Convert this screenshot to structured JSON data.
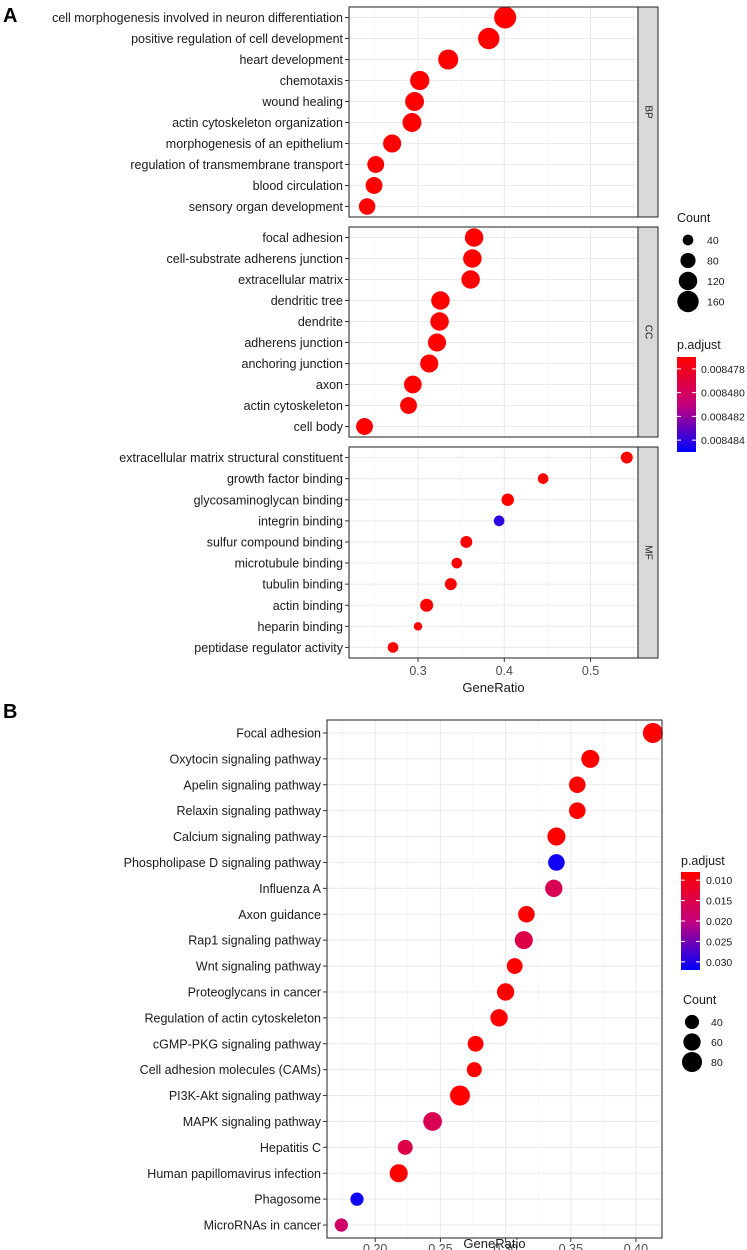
{
  "chart_data": [
    {
      "panel": "A",
      "type": "scatter",
      "xlabel": "GeneRatio",
      "xticks": [
        0.3,
        0.4,
        0.5
      ],
      "xlim": [
        0.22,
        0.555
      ],
      "facets": [
        {
          "name": "BP",
          "categories": [
            "cell morphogenesis involved in neuron differentiation",
            "positive regulation of cell development",
            "heart development",
            "chemotaxis",
            "wound healing",
            "actin cytoskeleton organization",
            "morphogenesis of an epithelium",
            "regulation of transmembrane transport",
            "blood circulation",
            "sensory organ development"
          ],
          "gene_ratio": [
            0.401,
            0.382,
            0.335,
            0.302,
            0.296,
            0.293,
            0.27,
            0.251,
            0.249,
            0.241
          ],
          "count": [
            170,
            160,
            140,
            130,
            125,
            125,
            115,
            100,
            100,
            95
          ],
          "p_adjust": [
            0.008477,
            0.008477,
            0.008477,
            0.008477,
            0.008477,
            0.008477,
            0.008477,
            0.008477,
            0.008477,
            0.008477
          ]
        },
        {
          "name": "CC",
          "categories": [
            "focal adhesion",
            "cell-substrate adherens junction",
            "extracellular matrix",
            "dendritic tree",
            "dendrite",
            "adherens junction",
            "anchoring junction",
            "axon",
            "actin cytoskeleton",
            "cell body"
          ],
          "gene_ratio": [
            0.365,
            0.363,
            0.361,
            0.326,
            0.325,
            0.322,
            0.313,
            0.294,
            0.289,
            0.238
          ],
          "count": [
            120,
            120,
            120,
            120,
            120,
            115,
            115,
            110,
            100,
            100
          ],
          "p_adjust": [
            0.008477,
            0.008477,
            0.008477,
            0.008477,
            0.008477,
            0.008477,
            0.008477,
            0.008477,
            0.008477,
            0.008477
          ]
        },
        {
          "name": "MF",
          "categories": [
            "extracellular matrix structural constituent",
            "growth factor binding",
            "glycosaminoglycan binding",
            "integrin binding",
            "sulfur compound binding",
            "microtubule binding",
            "tubulin binding",
            "actin binding",
            "heparin binding",
            "peptidase regulator activity"
          ],
          "gene_ratio": [
            0.542,
            0.445,
            0.404,
            0.394,
            0.356,
            0.345,
            0.338,
            0.31,
            0.3,
            0.271
          ],
          "count": [
            50,
            40,
            55,
            40,
            50,
            40,
            50,
            60,
            25,
            40
          ],
          "p_adjust": [
            0.008477,
            0.008477,
            0.008477,
            0.008484,
            0.008477,
            0.008477,
            0.008477,
            0.008477,
            0.008477,
            0.008477
          ]
        }
      ],
      "legend_count": {
        "title": "Count",
        "values": [
          40,
          80,
          120,
          160
        ],
        "labels": [
          "40",
          "80",
          "120",
          "160"
        ]
      },
      "legend_padj": {
        "title": "p.adjust",
        "min": 0.008477,
        "max": 0.008485,
        "ticks": [
          0.008478,
          0.00848,
          0.008482,
          0.008484
        ],
        "labels": [
          "0.008478",
          "0.008480",
          "0.008482",
          "0.008484"
        ],
        "color_low": "#ff0000",
        "color_high": "#0000ff"
      }
    },
    {
      "panel": "B",
      "type": "scatter",
      "xlabel": "GeneRatio",
      "xticks": [
        0.2,
        0.25,
        0.3,
        0.35,
        0.4
      ],
      "xtick_labels": [
        "0.20",
        "0.25",
        "0.30",
        "0.35",
        "0.40"
      ],
      "xlim": [
        0.163,
        0.42
      ],
      "categories": [
        "Focal adhesion",
        "Oxytocin signaling pathway",
        "Apelin signaling pathway",
        "Relaxin signaling pathway",
        "Calcium signaling pathway",
        "Phospholipase D signaling pathway",
        "Influenza A",
        "Axon guidance",
        "Rap1 signaling pathway",
        "Wnt signaling pathway",
        "Proteoglycans in cancer",
        "Regulation of actin cytoskeleton",
        "cGMP-PKG signaling pathway",
        "Cell adhesion molecules (CAMs)",
        "PI3K-Akt signaling pathway",
        "MAPK signaling pathway",
        "Hepatitis C",
        "Human papillomavirus infection",
        "Phagosome",
        "MicroRNAs in cancer"
      ],
      "gene_ratio": [
        0.413,
        0.365,
        0.355,
        0.355,
        0.339,
        0.339,
        0.337,
        0.316,
        0.314,
        0.307,
        0.3,
        0.295,
        0.277,
        0.276,
        0.265,
        0.244,
        0.223,
        0.218,
        0.186,
        0.174
      ],
      "count": [
        80,
        65,
        55,
        55,
        65,
        55,
        60,
        55,
        65,
        50,
        60,
        60,
        50,
        45,
        80,
        70,
        45,
        65,
        35,
        35
      ],
      "p_adjust": [
        0.008,
        0.008,
        0.008,
        0.008,
        0.008,
        0.031,
        0.016,
        0.008,
        0.015,
        0.008,
        0.008,
        0.008,
        0.008,
        0.008,
        0.008,
        0.016,
        0.015,
        0.008,
        0.031,
        0.018
      ],
      "legend_padj": {
        "title": "p.adjust",
        "min": 0.008,
        "max": 0.032,
        "ticks": [
          0.01,
          0.015,
          0.02,
          0.025,
          0.03
        ],
        "labels": [
          "0.010",
          "0.015",
          "0.020",
          "0.025",
          "0.030"
        ],
        "color_low": "#ff0000",
        "color_high": "#0000ff"
      },
      "legend_count": {
        "title": "Count",
        "values": [
          40,
          60,
          80
        ],
        "labels": [
          "40",
          "60",
          "80"
        ]
      }
    }
  ],
  "panel_labels": {
    "a": "A",
    "b": "B"
  }
}
